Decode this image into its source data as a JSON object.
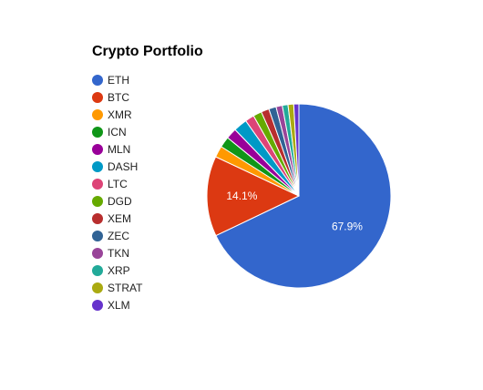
{
  "chart_data": {
    "type": "pie",
    "title": "Crypto Portfolio",
    "legend_position": "left",
    "slices": [
      {
        "label": "ETH",
        "value": 67.9,
        "color": "#3366cc",
        "data_label": "67.9%"
      },
      {
        "label": "BTC",
        "value": 14.1,
        "color": "#dc3912",
        "data_label": "14.1%"
      },
      {
        "label": "XMR",
        "value": 2.0,
        "color": "#ff9900",
        "data_label": ""
      },
      {
        "label": "ICN",
        "value": 1.9,
        "color": "#109618",
        "data_label": ""
      },
      {
        "label": "MLN",
        "value": 1.9,
        "color": "#990099",
        "data_label": ""
      },
      {
        "label": "DASH",
        "value": 2.4,
        "color": "#0099c6",
        "data_label": ""
      },
      {
        "label": "LTC",
        "value": 1.6,
        "color": "#dd4477",
        "data_label": ""
      },
      {
        "label": "DGD",
        "value": 1.5,
        "color": "#66aa00",
        "data_label": ""
      },
      {
        "label": "XEM",
        "value": 1.4,
        "color": "#b82e2e",
        "data_label": ""
      },
      {
        "label": "ZEC",
        "value": 1.3,
        "color": "#316395",
        "data_label": ""
      },
      {
        "label": "TKN",
        "value": 1.1,
        "color": "#994499",
        "data_label": ""
      },
      {
        "label": "XRP",
        "value": 1.0,
        "color": "#22aa99",
        "data_label": ""
      },
      {
        "label": "STRAT",
        "value": 1.0,
        "color": "#aaaa11",
        "data_label": ""
      },
      {
        "label": "XLM",
        "value": 0.9,
        "color": "#6633cc",
        "data_label": ""
      }
    ]
  }
}
